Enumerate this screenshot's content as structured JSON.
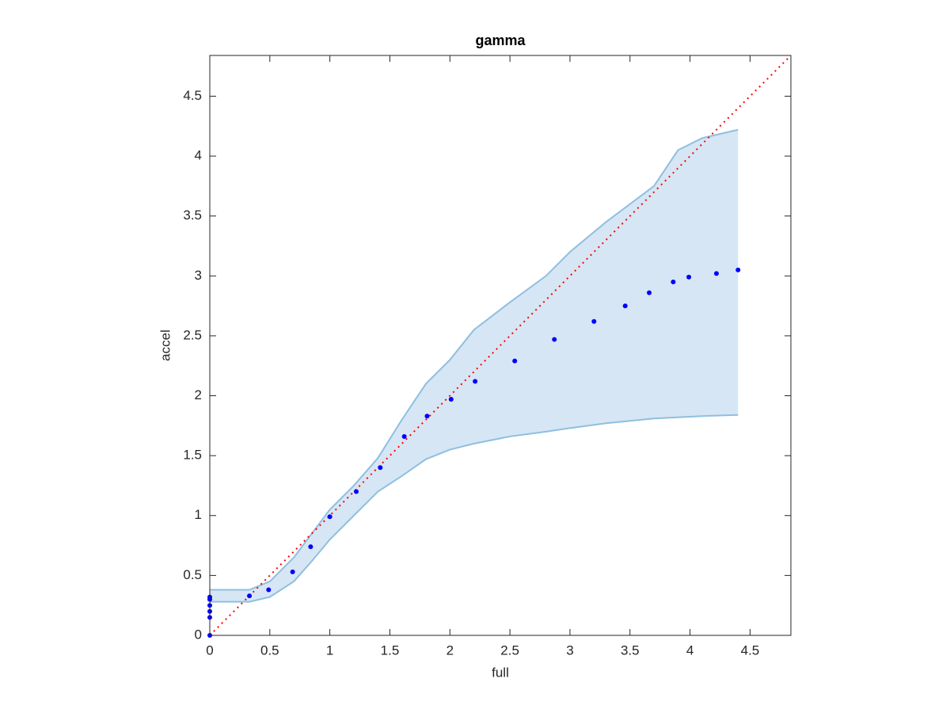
{
  "chart_data": {
    "type": "scatter",
    "title": "gamma",
    "x_label": "full",
    "y_label": "accel",
    "xlim": [
      0,
      4.84
    ],
    "ylim": [
      0,
      4.84
    ],
    "xticks": [
      0,
      0.5,
      1,
      1.5,
      2,
      2.5,
      3,
      3.5,
      4,
      4.5
    ],
    "yticks": [
      0,
      0.5,
      1,
      1.5,
      2,
      2.5,
      3,
      3.5,
      4,
      4.5
    ],
    "band": {
      "color": "#d6e6f4",
      "edge_color": "#8fbfe0",
      "x": [
        0,
        0.3,
        0.33,
        0.5,
        0.7,
        0.85,
        1.0,
        1.2,
        1.4,
        1.6,
        1.8,
        2.0,
        2.2,
        2.5,
        2.8,
        3.0,
        3.3,
        3.5,
        3.7,
        3.9,
        4.1,
        4.4
      ],
      "upper": [
        0.38,
        0.38,
        0.38,
        0.45,
        0.65,
        0.85,
        1.05,
        1.25,
        1.48,
        1.8,
        2.1,
        2.3,
        2.55,
        2.78,
        3.0,
        3.2,
        3.45,
        3.6,
        3.75,
        4.05,
        4.15,
        4.22
      ],
      "lower": [
        0.28,
        0.28,
        0.28,
        0.32,
        0.45,
        0.62,
        0.8,
        1.0,
        1.2,
        1.33,
        1.47,
        1.55,
        1.6,
        1.66,
        1.7,
        1.73,
        1.77,
        1.79,
        1.81,
        1.82,
        1.83,
        1.84
      ]
    },
    "reference_line": {
      "color": "#ff0000",
      "x": [
        0,
        4.84
      ],
      "y": [
        0,
        4.84
      ]
    },
    "points": {
      "color": "#0000ff",
      "x": [
        0,
        0,
        0,
        0,
        0,
        0,
        0.33,
        0.49,
        0.69,
        0.84,
        1.0,
        1.22,
        1.42,
        1.62,
        1.81,
        2.01,
        2.21,
        2.54,
        2.87,
        3.2,
        3.46,
        3.66,
        3.86,
        3.99,
        4.22,
        4.4
      ],
      "y": [
        0,
        0.15,
        0.2,
        0.25,
        0.3,
        0.32,
        0.33,
        0.38,
        0.53,
        0.74,
        0.99,
        1.2,
        1.4,
        1.66,
        1.83,
        1.97,
        2.12,
        2.29,
        2.47,
        2.62,
        2.75,
        2.86,
        2.95,
        2.99,
        3.02,
        3.05
      ]
    }
  }
}
